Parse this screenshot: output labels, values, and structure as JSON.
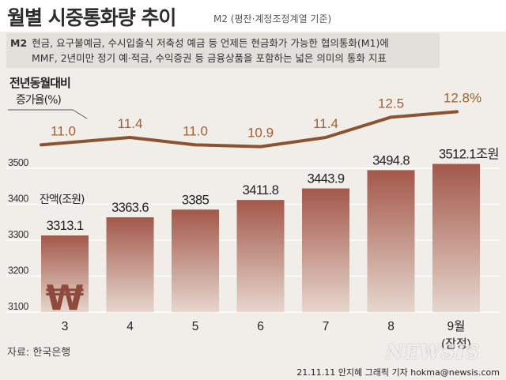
{
  "header": {
    "title": "월별 시중통화량 추이",
    "subtitle": "M2 (평잔·계정조정계열 기준)"
  },
  "definition": {
    "tag": "M2",
    "line1": "현금, 요구불예금, 수시입출식 저축성 예금 등 언제든 현금화가 가능한 협의통화(M1)에",
    "line2": "MMF, 2년미만 정기 예·적금, 수익증권 등 금융상품을 포함하는 넓은 의미의 통화 지표"
  },
  "chart_data": {
    "type": "bar",
    "categories": [
      "3",
      "4",
      "5",
      "6",
      "7",
      "8",
      "9월"
    ],
    "category_note": "(잠정)",
    "bar_series": {
      "name": "잔액(조원)",
      "values": [
        3313.1,
        3363.6,
        3385,
        3411.8,
        3443.9,
        3494.8,
        3512.1
      ],
      "labels": [
        "3313.1",
        "3363.6",
        "3385",
        "3411.8",
        "3443.9",
        "3494.8",
        "3512.1"
      ],
      "last_label_unit": "조원",
      "ylim": [
        3100,
        3550
      ],
      "yticks": [
        3100,
        3200,
        3300,
        3400,
        3500
      ]
    },
    "line_series": {
      "name": "전년동월대비 증가율(%)",
      "values": [
        11.0,
        11.4,
        11.0,
        10.9,
        11.4,
        12.5,
        12.8
      ],
      "labels": [
        "11.0",
        "11.4",
        "11.0",
        "10.9",
        "11.4",
        "12.5",
        "12.8"
      ],
      "last_label_unit": "%"
    },
    "line_label": [
      "전년동월대비",
      "증가율(%)"
    ],
    "bar_label": "잔액(조원)",
    "colors": {
      "bar_top": "#a3584a",
      "bar_bottom": "#e6d6cd",
      "line": "#8c5331",
      "line_label": "#a06034",
      "gridline": "#ffffff",
      "won_symbol": "#8f4a3c"
    },
    "won_symbol": "₩"
  },
  "footer": {
    "source": "자료: 한국은행",
    "credit": "21.11.11 안지혜 그래픽 기자 hokma@newsis.com",
    "watermark": "NEWSIS"
  }
}
